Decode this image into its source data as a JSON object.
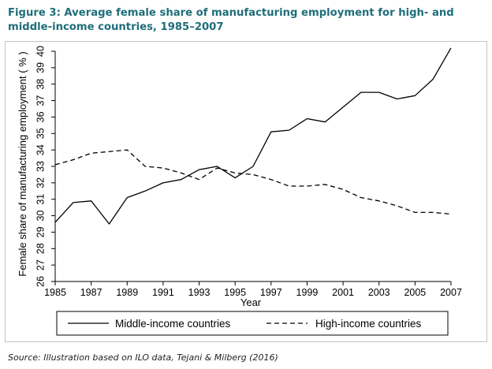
{
  "figure": {
    "title": "Figure 3: Average female share of manufacturing employment for high- and middle-income countries, 1985–2007",
    "source": "Source: Illustration based on ILO data, Tejani & Milberg (2016)"
  },
  "chart_data": {
    "type": "line",
    "title": "",
    "xlabel": "Year",
    "ylabel": "Female share of manufacturing employment ( % )",
    "xlim": [
      1985,
      2007
    ],
    "ylim": [
      26,
      40
    ],
    "x_ticks": [
      "1985",
      "1987",
      "1989",
      "1991",
      "1993",
      "1995",
      "1997",
      "1999",
      "2001",
      "2003",
      "2005",
      "2007"
    ],
    "y_ticks": [
      "26",
      "27",
      "28",
      "29",
      "30",
      "31",
      "32",
      "33",
      "34",
      "35",
      "36",
      "37",
      "38",
      "39",
      "40"
    ],
    "grid": false,
    "legend_position": "bottom",
    "x": [
      1985,
      1986,
      1987,
      1988,
      1989,
      1990,
      1991,
      1992,
      1993,
      1994,
      1995,
      1996,
      1997,
      1998,
      1999,
      2000,
      2001,
      2002,
      2003,
      2004,
      2005,
      2006,
      2007
    ],
    "series": [
      {
        "name": "Middle-income countries",
        "style": "solid",
        "color": "#000000",
        "values": [
          29.6,
          30.8,
          30.9,
          29.5,
          31.1,
          31.5,
          32.0,
          32.2,
          32.8,
          33.0,
          32.3,
          33.0,
          35.1,
          35.2,
          35.9,
          35.7,
          36.6,
          37.5,
          37.5,
          37.1,
          37.3,
          38.3,
          40.2
        ]
      },
      {
        "name": "High-income countries",
        "style": "dashed",
        "color": "#000000",
        "values": [
          33.1,
          33.4,
          33.8,
          33.9,
          34.0,
          33.0,
          32.9,
          32.6,
          32.2,
          32.9,
          32.6,
          32.5,
          32.2,
          31.8,
          31.8,
          31.9,
          31.6,
          31.1,
          30.9,
          30.6,
          30.2,
          30.2,
          30.1
        ]
      }
    ]
  }
}
